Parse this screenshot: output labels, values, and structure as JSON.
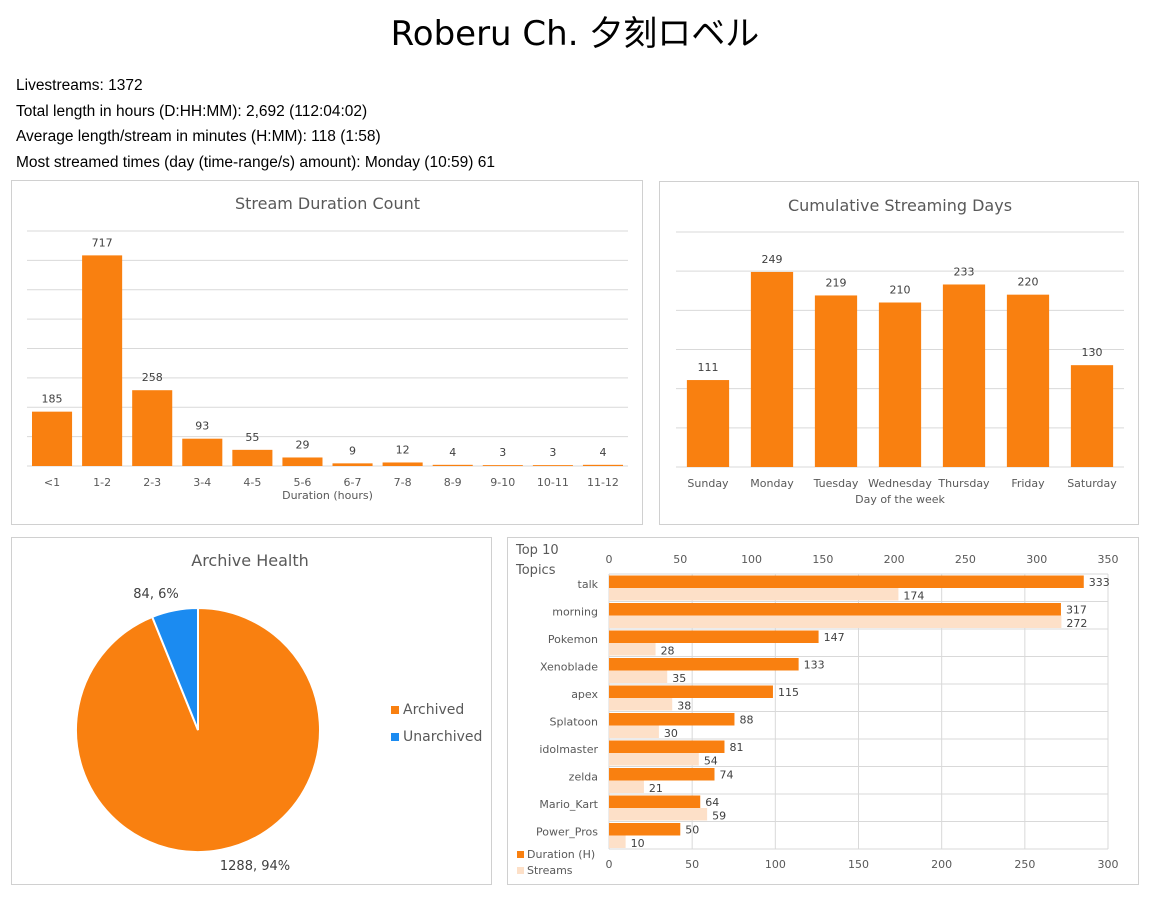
{
  "page": {
    "title": "Roberu Ch. 夕刻ロベル",
    "stats": [
      "Livestreams: 1372",
      "Total length in hours (D:HH:MM): 2,692 (112:04:02)",
      "Average length/stream in minutes (H:MM): 118 (1:58)",
      "Most streamed times (day (time-range/s) amount): Monday (10:59) 61"
    ]
  },
  "colors": {
    "orange": "#f98010",
    "light_orange": "#fde0c8",
    "blue": "#1b8bf1",
    "grid": "#d9d9d9",
    "text": "#595959"
  },
  "chart_data": [
    {
      "type": "bar",
      "title": "Stream Duration Count",
      "xlabel": "Duration (hours)",
      "ylabel": "",
      "categories": [
        "<1",
        "1-2",
        "2-3",
        "3-4",
        "4-5",
        "5-6",
        "6-7",
        "7-8",
        "8-9",
        "9-10",
        "10-11",
        "11-12"
      ],
      "values": [
        185,
        717,
        258,
        93,
        55,
        29,
        9,
        12,
        4,
        3,
        3,
        4
      ],
      "ylim": [
        0,
        800
      ],
      "grid": true
    },
    {
      "type": "bar",
      "title": "Cumulative Streaming Days",
      "xlabel": "Day of the week",
      "ylabel": "",
      "categories": [
        "Sunday",
        "Monday",
        "Tuesday",
        "Wednesday",
        "Thursday",
        "Friday",
        "Saturday"
      ],
      "values": [
        111,
        249,
        219,
        210,
        233,
        220,
        130
      ],
      "ylim": [
        0,
        300
      ],
      "grid": true
    },
    {
      "type": "pie",
      "title": "Archive Health",
      "labels": [
        "Archived",
        "Unarchived"
      ],
      "values": [
        1288,
        84
      ],
      "data_labels": [
        "1288, 94%",
        "84, 6%"
      ],
      "legend": "right"
    },
    {
      "type": "bar",
      "orientation": "horizontal",
      "title": "Top 10 Topics",
      "categories": [
        "talk",
        "morning",
        "Pokemon",
        "Xenoblade",
        "apex",
        "Splatoon",
        "idolmaster",
        "zelda",
        "Mario_Kart",
        "Power_Pros"
      ],
      "series": [
        {
          "name": "Duration (H)",
          "values": [
            333,
            317,
            147,
            133,
            115,
            88,
            81,
            74,
            64,
            50
          ],
          "axis": "top"
        },
        {
          "name": "Streams",
          "values": [
            174,
            272,
            28,
            35,
            38,
            30,
            54,
            21,
            59,
            10
          ],
          "axis": "bottom"
        }
      ],
      "top_axis": {
        "min": 0,
        "max": 350,
        "step": 50
      },
      "bottom_axis": {
        "min": 0,
        "max": 300,
        "step": 50
      },
      "legend": "bottom-left",
      "grid": true
    }
  ]
}
